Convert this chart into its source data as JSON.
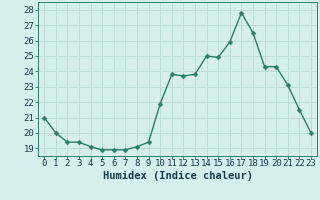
{
  "x": [
    0,
    1,
    2,
    3,
    4,
    5,
    6,
    7,
    8,
    9,
    10,
    11,
    12,
    13,
    14,
    15,
    16,
    17,
    18,
    19,
    20,
    21,
    22,
    23
  ],
  "y": [
    21.0,
    20.0,
    19.4,
    19.4,
    19.1,
    18.9,
    18.9,
    18.9,
    19.1,
    19.4,
    21.9,
    23.8,
    23.7,
    23.8,
    25.0,
    24.9,
    25.9,
    27.8,
    26.5,
    24.3,
    24.3,
    23.1,
    21.5,
    20.0
  ],
  "line_color": "#2d7d6e",
  "marker_color": "#2d7d6e",
  "bg_color": "#d5eeee",
  "grid_color": "#b8d8d8",
  "xlabel": "Humidex (Indice chaleur)",
  "xlim": [
    -0.5,
    23.5
  ],
  "ylim": [
    18.5,
    28.5
  ],
  "yticks": [
    19,
    20,
    21,
    22,
    23,
    24,
    25,
    26,
    27,
    28
  ],
  "xticks": [
    0,
    1,
    2,
    3,
    4,
    5,
    6,
    7,
    8,
    9,
    10,
    11,
    12,
    13,
    14,
    15,
    16,
    17,
    18,
    19,
    20,
    21,
    22,
    23
  ],
  "tick_fontsize": 6.5,
  "xlabel_fontsize": 7.5,
  "line_width": 1.0,
  "marker_size": 2.5
}
